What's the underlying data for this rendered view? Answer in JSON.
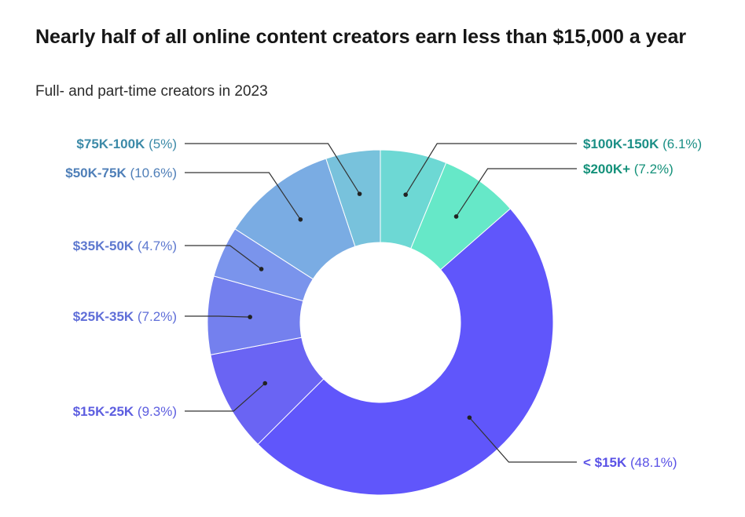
{
  "chart_data": {
    "type": "pie",
    "title": "Nearly half of all online content creators earn less than $15,000 a year",
    "subtitle": "Full- and part-time creators in 2023",
    "slices": [
      {
        "label": "$100K-150K",
        "value": 6.1,
        "value_label": "(6.1%)",
        "color": "#6dd8d4",
        "text_color": "#1b8f86"
      },
      {
        "label": "$200K+",
        "value": 7.2,
        "value_label": "(7.2%)",
        "color": "#66e8c8",
        "text_color": "#14917a"
      },
      {
        "label": "< $15K",
        "value": 48.1,
        "value_label": "(48.1%)",
        "color": "#6056fb",
        "text_color": "#5a52e6"
      },
      {
        "label": "$15K-25K",
        "value": 9.3,
        "value_label": "(9.3%)",
        "color": "#6a64f3",
        "text_color": "#5d5ee0"
      },
      {
        "label": "$25K-35K",
        "value": 7.2,
        "value_label": "(7.2%)",
        "color": "#7480ee",
        "text_color": "#5f6ed8"
      },
      {
        "label": "$35K-50K",
        "value": 4.7,
        "value_label": "(4.7%)",
        "color": "#7a94ec",
        "text_color": "#5d78cf"
      },
      {
        "label": "$50K-75K",
        "value": 10.6,
        "value_label": "(10.6%)",
        "color": "#7aace3",
        "text_color": "#4f7fb8"
      },
      {
        "label": "$75K-100K",
        "value": 5,
        "value_label": "(5%)",
        "color": "#78c2dc",
        "text_color": "#3c8aa8"
      }
    ],
    "hole": true,
    "legend": "none",
    "labels": "outside with leader lines"
  }
}
